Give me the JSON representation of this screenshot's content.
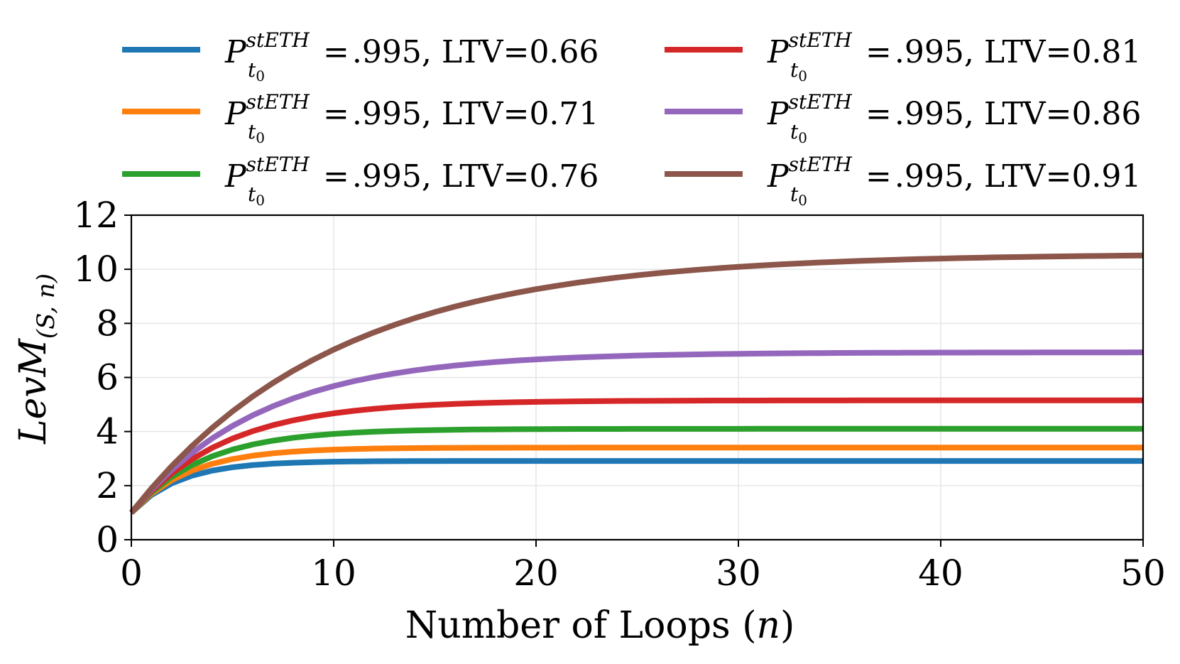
{
  "chart_data": {
    "type": "line",
    "title": "",
    "xlabel": "Number of Loops (n)",
    "xlabel_text": "Number of Loops (",
    "xlabel_var": "n",
    "xlabel_close": ")",
    "ylabel": "LevM(S,n)",
    "ylabel_main": "LevM",
    "ylabel_sub": "(S, n)",
    "xlim": [
      0,
      50
    ],
    "ylim": [
      0,
      12
    ],
    "xticks": [
      "0",
      "10",
      "20",
      "30",
      "40",
      "50"
    ],
    "yticks": [
      "0",
      "2",
      "4",
      "6",
      "8",
      "10",
      "12"
    ],
    "grid": true,
    "legend_position": "top",
    "legend_columns": 2,
    "x": [
      0,
      1,
      2,
      3,
      4,
      5,
      6,
      7,
      8,
      9,
      10,
      11,
      12,
      13,
      14,
      15,
      16,
      17,
      18,
      19,
      20,
      21,
      22,
      23,
      24,
      25,
      26,
      27,
      28,
      29,
      30,
      31,
      32,
      33,
      34,
      35,
      36,
      37,
      38,
      39,
      40,
      41,
      42,
      43,
      44,
      45,
      46,
      47,
      48,
      49,
      50
    ],
    "series": [
      {
        "name": "P_t0^stETH = .995, LTV=0.66",
        "price": ".995",
        "ltv_text": "LTV=0.66",
        "ltv": 0.66,
        "color": "#1f77b4"
      },
      {
        "name": "P_t0^stETH = .995, LTV=0.71",
        "price": ".995",
        "ltv_text": "LTV=0.71",
        "ltv": 0.71,
        "color": "#ff7f0e"
      },
      {
        "name": "P_t0^stETH = .995, LTV=0.76",
        "price": ".995",
        "ltv_text": "LTV=0.76",
        "ltv": 0.76,
        "color": "#2ca02c"
      },
      {
        "name": "P_t0^stETH = .995, LTV=0.81",
        "price": ".995",
        "ltv_text": "LTV=0.81",
        "ltv": 0.81,
        "color": "#d62728"
      },
      {
        "name": "P_t0^stETH = .995, LTV=0.86",
        "price": ".995",
        "ltv_text": "LTV=0.86",
        "ltv": 0.86,
        "color": "#9467bd"
      },
      {
        "name": "P_t0^stETH = .995, LTV=0.91",
        "price": ".995",
        "ltv_text": "LTV=0.91",
        "ltv": 0.91,
        "color": "#8c564b"
      }
    ],
    "legend_symbol": "P",
    "legend_sup": "stETH",
    "legend_sub": "t",
    "legend_subsub": "0",
    "legend_eq": "=",
    "legend_sep": ","
  }
}
